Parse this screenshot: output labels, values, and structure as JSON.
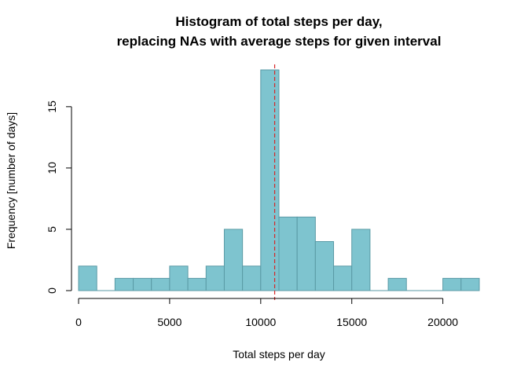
{
  "chart_data": {
    "type": "bar",
    "title_lines": [
      "Histogram of total steps per day,",
      "replacing NAs with average steps for given interval"
    ],
    "xlabel": "Total steps per day",
    "ylabel": "Frequency [number of days]",
    "bin_width": 1000,
    "bins_start": 0,
    "values": [
      2,
      0,
      1,
      1,
      1,
      2,
      1,
      2,
      5,
      2,
      18,
      6,
      6,
      4,
      2,
      5,
      0,
      1,
      0,
      0,
      1,
      1
    ],
    "xlim": [
      0,
      22000
    ],
    "ylim": [
      0,
      18
    ],
    "x_ticks": [
      0,
      5000,
      10000,
      15000,
      20000
    ],
    "x_tick_labels": [
      "0",
      "5000",
      "10000",
      "15000",
      "20000"
    ],
    "y_ticks": [
      0,
      5,
      10,
      15
    ],
    "y_tick_labels": [
      "0",
      "5",
      "10",
      "15"
    ],
    "mean_line": 10766,
    "bar_color": "#7ec4cf",
    "bar_border": "#5a9aa5",
    "mean_line_color": "#d62728",
    "grid": false
  }
}
